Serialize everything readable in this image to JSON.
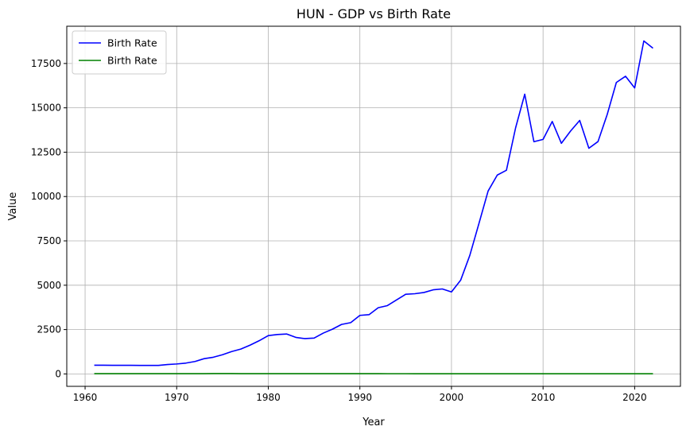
{
  "chart_data": {
    "type": "line",
    "title": "HUN - GDP vs Birth Rate",
    "xlabel": "Year",
    "ylabel": "Value",
    "xlim": [
      1958,
      2025
    ],
    "ylim": [
      -700,
      19600
    ],
    "xticks": [
      1960,
      1970,
      1980,
      1990,
      2000,
      2010,
      2020
    ],
    "yticks": [
      0,
      2500,
      5000,
      7500,
      10000,
      12500,
      15000,
      17500
    ],
    "grid": true,
    "legend_position": "top-left",
    "series": [
      {
        "name": "Birth Rate",
        "color": "#0000ff",
        "x": [
          1961,
          1962,
          1963,
          1964,
          1965,
          1966,
          1967,
          1968,
          1969,
          1970,
          1971,
          1972,
          1973,
          1974,
          1975,
          1976,
          1977,
          1978,
          1979,
          1980,
          1981,
          1982,
          1983,
          1984,
          1985,
          1986,
          1987,
          1988,
          1989,
          1990,
          1991,
          1992,
          1993,
          1994,
          1995,
          1996,
          1997,
          1998,
          1999,
          2000,
          2001,
          2002,
          2003,
          2004,
          2005,
          2006,
          2007,
          2008,
          2009,
          2010,
          2011,
          2012,
          2013,
          2014,
          2015,
          2016,
          2017,
          2018,
          2019,
          2020,
          2021,
          2022
        ],
        "y": [
          490,
          490,
          485,
          485,
          485,
          480,
          480,
          480,
          530,
          560,
          610,
          700,
          860,
          940,
          1080,
          1260,
          1400,
          1620,
          1870,
          2160,
          2220,
          2250,
          2060,
          1990,
          2020,
          2300,
          2520,
          2790,
          2890,
          3300,
          3340,
          3730,
          3850,
          4170,
          4490,
          4520,
          4590,
          4740,
          4790,
          4620,
          5280,
          6680,
          8480,
          10310,
          11210,
          11480,
          13870,
          15770,
          13090,
          13220,
          14230,
          13000,
          13690,
          14290,
          12720,
          13100,
          14620,
          16430,
          16780,
          16120,
          18770,
          18360
        ]
      },
      {
        "name": "Birth Rate",
        "color": "#008000",
        "x": [
          1961,
          1962,
          1963,
          1964,
          1965,
          1966,
          1967,
          1968,
          1969,
          1970,
          1971,
          1972,
          1973,
          1974,
          1975,
          1976,
          1977,
          1978,
          1979,
          1980,
          1981,
          1982,
          1983,
          1984,
          1985,
          1986,
          1987,
          1988,
          1989,
          1990,
          1991,
          1992,
          1993,
          1994,
          1995,
          1996,
          1997,
          1998,
          1999,
          2000,
          2001,
          2002,
          2003,
          2004,
          2005,
          2006,
          2007,
          2008,
          2009,
          2010,
          2011,
          2012,
          2013,
          2014,
          2015,
          2016,
          2017,
          2018,
          2019,
          2020,
          2021,
          2022
        ],
        "y": [
          14,
          13,
          13,
          13,
          13,
          14,
          15,
          15,
          15,
          15,
          15,
          15,
          15,
          18,
          18,
          18,
          16,
          16,
          15,
          14,
          14,
          13,
          12,
          12,
          12,
          12,
          12,
          12,
          12,
          12,
          12,
          12,
          11,
          11,
          11,
          10,
          10,
          10,
          9,
          10,
          9,
          9,
          9,
          9,
          10,
          10,
          10,
          10,
          10,
          9,
          9,
          9,
          9,
          9,
          9,
          9,
          9,
          9,
          9,
          9,
          10,
          9
        ]
      }
    ]
  }
}
